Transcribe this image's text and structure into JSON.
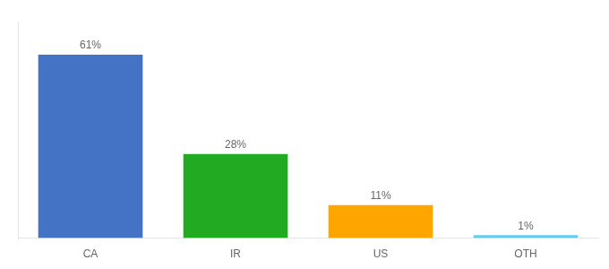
{
  "chart_data": {
    "type": "bar",
    "categories": [
      "CA",
      "IR",
      "US",
      "OTH"
    ],
    "values": [
      61,
      28,
      11,
      1
    ],
    "value_labels": [
      "61%",
      "28%",
      "11%",
      "1%"
    ],
    "colors": [
      "#4472C4",
      "#22AA22",
      "#FFA500",
      "#66CCEE"
    ],
    "ylim": [
      0,
      72
    ],
    "data_labels": true,
    "tick_labels": "x",
    "grid": false
  }
}
